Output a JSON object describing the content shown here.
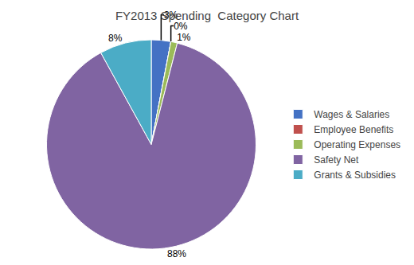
{
  "chart_data": {
    "type": "pie",
    "title": "FY2013 Spending  Category Chart",
    "categories": [
      "Wages & Salaries",
      "Employee Benefits",
      "Operating Expenses",
      "Safety Net",
      "Grants & Subsidies"
    ],
    "values": [
      3,
      0,
      1,
      88,
      8
    ],
    "value_labels": [
      "3%",
      "0%",
      "1%",
      "88%",
      "8%"
    ],
    "colors": [
      "#4472C4",
      "#C0504D",
      "#9BBB59",
      "#8064A2",
      "#4BACC6"
    ],
    "data_labels": true,
    "legend": "right"
  }
}
